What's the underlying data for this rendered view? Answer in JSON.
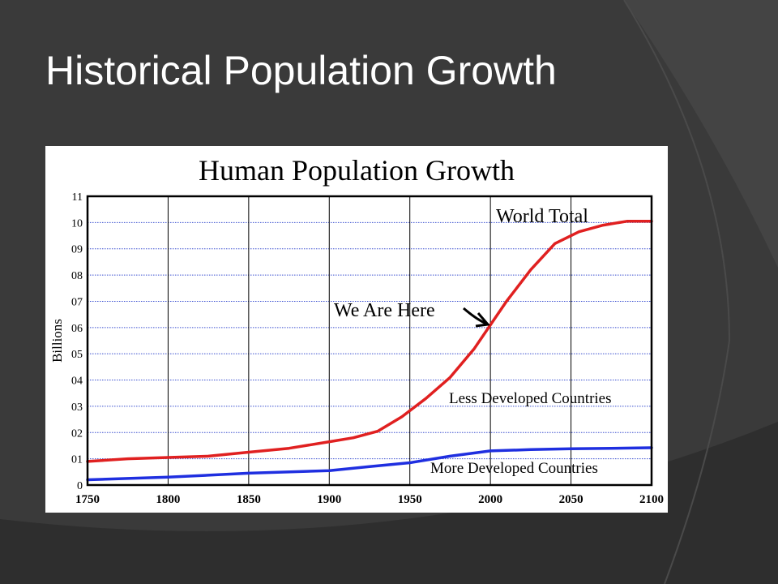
{
  "slide": {
    "title": "Historical Population Growth"
  },
  "colors": {
    "background": "#3a3a3a",
    "world_total": "#e02020",
    "more_developed": "#1f2fe0",
    "grid_dotted": "#3a4fd0"
  },
  "chart_data": {
    "type": "line",
    "title": "Human Population Growth",
    "xlabel": "",
    "ylabel": "Billions",
    "xlim": [
      1750,
      2100
    ],
    "ylim": [
      0,
      11
    ],
    "x_ticks": [
      "1750",
      "1800",
      "1850",
      "1900",
      "1950",
      "2000",
      "2050",
      "2100"
    ],
    "y_ticks": [
      "0",
      "01",
      "02",
      "03",
      "04",
      "05",
      "06",
      "07",
      "08",
      "09",
      "10",
      "11"
    ],
    "grid": {
      "vertical": true,
      "horizontal_dotted": true
    },
    "series": [
      {
        "name": "World Total",
        "color": "#e02020",
        "x": [
          1750,
          1775,
          1800,
          1825,
          1850,
          1875,
          1900,
          1915,
          1930,
          1945,
          1960,
          1975,
          1990,
          2000,
          2010,
          2025,
          2040,
          2055,
          2070,
          2085,
          2100
        ],
        "y": [
          0.9,
          1.0,
          1.05,
          1.1,
          1.25,
          1.4,
          1.65,
          1.8,
          2.05,
          2.6,
          3.3,
          4.1,
          5.2,
          6.1,
          7.0,
          8.2,
          9.2,
          9.65,
          9.9,
          10.05,
          10.05
        ]
      },
      {
        "name": "More Developed Countries",
        "color": "#1f2fe0",
        "x": [
          1750,
          1800,
          1850,
          1900,
          1925,
          1950,
          1975,
          2000,
          2025,
          2050,
          2075,
          2100
        ],
        "y": [
          0.2,
          0.3,
          0.45,
          0.55,
          0.7,
          0.85,
          1.1,
          1.3,
          1.35,
          1.38,
          1.4,
          1.42
        ]
      }
    ],
    "annotations": [
      {
        "text": "World Total"
      },
      {
        "text": "We Are Here"
      },
      {
        "text": "Less Developed Countries"
      },
      {
        "text": "More Developed Countries"
      }
    ]
  }
}
